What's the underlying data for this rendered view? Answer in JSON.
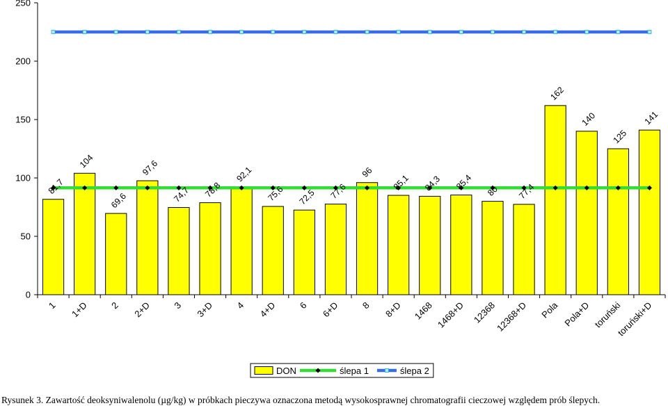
{
  "chart_data": {
    "type": "bar",
    "categories": [
      "1",
      "1+D",
      "2",
      "2+D",
      "3",
      "3+D",
      "4",
      "4+D",
      "6",
      "6+D",
      "8",
      "8+D",
      "1468",
      "1468+D",
      "12368",
      "12368+D",
      "Pola",
      "Pola+D",
      "toruński",
      "toruński+D"
    ],
    "series": [
      {
        "name": "DON",
        "type": "bar",
        "color": "#FFFF00",
        "values": [
          81.7,
          104,
          69.6,
          97.6,
          74.7,
          78.8,
          92.1,
          75.6,
          72.5,
          77.6,
          96,
          85.1,
          84.3,
          85.4,
          80,
          77.4,
          162,
          140,
          125,
          141
        ]
      },
      {
        "name": "ślepa 1",
        "type": "line",
        "color": "#33DD33",
        "value": 91.5
      },
      {
        "name": "ślepa 2",
        "type": "line",
        "color": "#3A6BE8",
        "value": 225
      }
    ],
    "data_labels": [
      "81,7",
      "104",
      "69,6",
      "97,6",
      "74,7",
      "78,8",
      "92,1",
      "75,6",
      "72,5",
      "77,6",
      "96",
      "85,1",
      "84,3",
      "85,4",
      "80",
      "77,4",
      "162",
      "140",
      "125",
      "141"
    ],
    "ylim": [
      0,
      250
    ],
    "yticks": [
      "0",
      "50",
      "100",
      "150",
      "200",
      "250"
    ],
    "legend_position": "bottom",
    "grid": false
  },
  "caption": "Rysunek 3. Zawartość deoksyniwalenolu (µg/kg) w próbkach pieczywa oznaczona metodą wysokosprawnej chromatografii cieczowej względem prób ślepych."
}
